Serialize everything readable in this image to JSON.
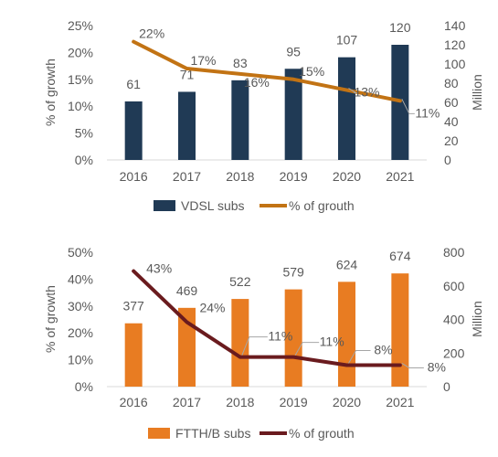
{
  "chart_data": [
    {
      "type": "bar",
      "categories": [
        "2016",
        "2017",
        "2018",
        "2019",
        "2020",
        "2021"
      ],
      "series": [
        {
          "name": "VDSL subs",
          "type": "bar",
          "axis": "right",
          "values": [
            61,
            71,
            83,
            95,
            107,
            120
          ],
          "labels": [
            "61",
            "71",
            "83",
            "95",
            "107",
            "120"
          ],
          "color": "#203a55"
        },
        {
          "name": "% of grouth",
          "type": "line",
          "axis": "left",
          "values": [
            0.22,
            0.17,
            0.16,
            0.15,
            0.13,
            0.11
          ],
          "labels": [
            "22%",
            "17%",
            "16%",
            "15%",
            "13%",
            "11%"
          ],
          "color": "#c27314"
        }
      ],
      "ylabel_left": "% of growth",
      "ylabel_right": "Million",
      "ylim_left": [
        0,
        0.25
      ],
      "ylim_right": [
        0,
        140
      ],
      "yticks_left": [
        "0%",
        "5%",
        "10%",
        "15%",
        "20%",
        "25%"
      ],
      "yticks_right": [
        "0",
        "20",
        "40",
        "60",
        "80",
        "100",
        "120",
        "140"
      ],
      "legend": "bottom",
      "grid": false
    },
    {
      "type": "bar",
      "categories": [
        "2016",
        "2017",
        "2018",
        "2019",
        "2020",
        "2021"
      ],
      "series": [
        {
          "name": "FTTH/B subs",
          "type": "bar",
          "axis": "right",
          "values": [
            377,
            469,
            522,
            579,
            624,
            674
          ],
          "labels": [
            "377",
            "469",
            "522",
            "579",
            "624",
            "674"
          ],
          "color": "#e87c22"
        },
        {
          "name": "% of grouth",
          "type": "line",
          "axis": "left",
          "values": [
            0.43,
            0.24,
            0.11,
            0.11,
            0.08,
            0.08
          ],
          "labels": [
            "43%",
            "24%",
            "11%",
            "11%",
            "8%",
            "8%"
          ],
          "color": "#6a1b1e"
        }
      ],
      "ylabel_left": "% of growth",
      "ylabel_right": "Million",
      "ylim_left": [
        0,
        0.5
      ],
      "ylim_right": [
        0,
        800
      ],
      "yticks_left": [
        "0%",
        "10%",
        "20%",
        "30%",
        "40%",
        "50%"
      ],
      "yticks_right": [
        "0",
        "200",
        "400",
        "600",
        "800"
      ],
      "legend": "bottom",
      "grid": false
    }
  ]
}
